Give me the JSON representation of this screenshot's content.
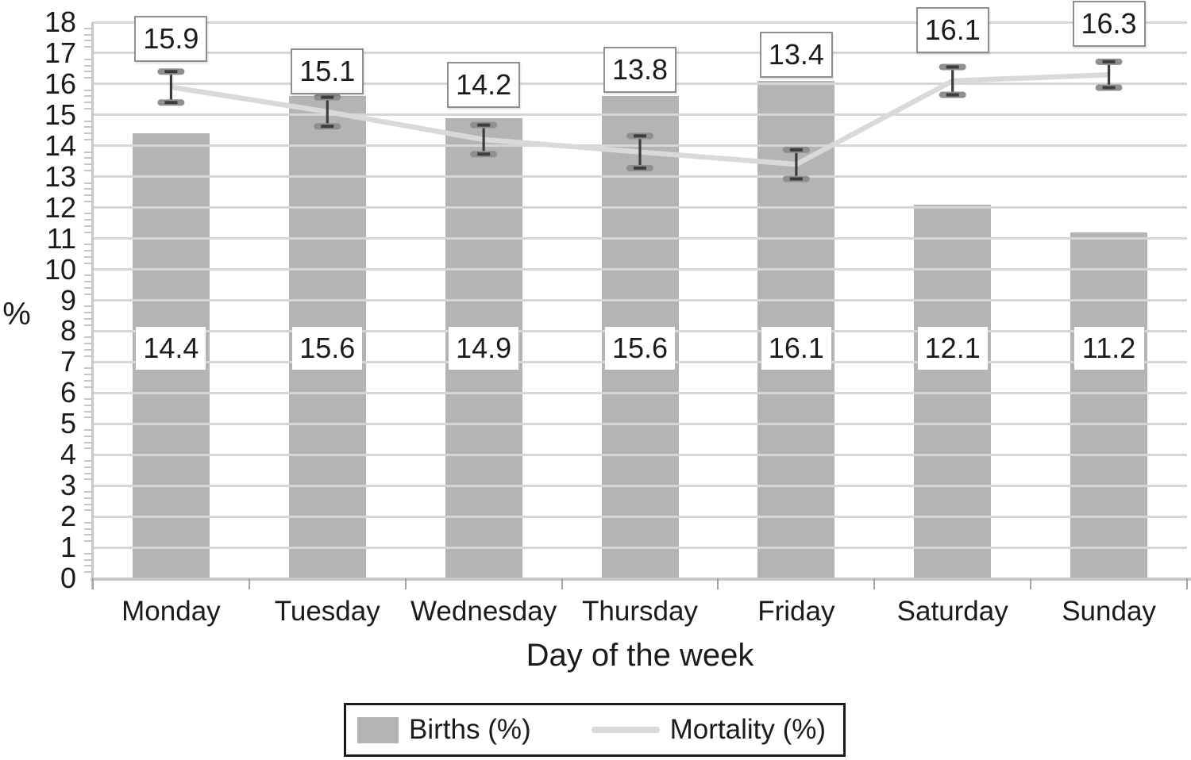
{
  "chart_data": {
    "type": "bar+line combo",
    "categories": [
      "Monday",
      "Tuesday",
      "Wednesday",
      "Thursday",
      "Friday",
      "Saturday",
      "Sunday"
    ],
    "series": [
      {
        "name": "Births (%)",
        "type": "bar",
        "values": [
          14.4,
          15.6,
          14.9,
          15.6,
          16.1,
          12.1,
          11.2
        ],
        "data_labels": [
          "14.4",
          "15.6",
          "14.9",
          "15.6",
          "16.1",
          "12.1",
          "11.2"
        ]
      },
      {
        "name": "Mortality (%)",
        "type": "line",
        "values": [
          15.9,
          15.1,
          14.2,
          13.8,
          13.4,
          16.1,
          16.3
        ],
        "data_labels": [
          "15.9",
          "15.1",
          "14.2",
          "13.8",
          "13.4",
          "16.1",
          "16.3"
        ],
        "error_bars": [
          0.5,
          0.47,
          0.47,
          0.52,
          0.47,
          0.45,
          0.42
        ]
      }
    ],
    "xlabel": "Day of the week",
    "ylabel": "%",
    "ylim": [
      0,
      18
    ],
    "y_ticks": [
      0,
      1,
      2,
      3,
      4,
      5,
      6,
      7,
      8,
      9,
      10,
      11,
      12,
      13,
      14,
      15,
      16,
      17,
      18
    ],
    "y_major_step": 1,
    "y_minor_step": 0.2,
    "grid": "horizontal major gridlines, drawn over bars",
    "legend_position": "bottom-center boxed",
    "layout_hints": {
      "bar_label_center_y_units": 7.45,
      "mortality_label_center_y_units": [
        17.45,
        16.4,
        15.97,
        16.45,
        16.95,
        17.75,
        17.95
      ]
    }
  },
  "colors": {
    "bar": "#b4b4b4",
    "mortality_line": "#d9d9d9",
    "gridline": "#d6d6d6",
    "axis": "#c7c7c7",
    "minor_tick": "#c6c6c6",
    "x_tick": "#a3a3a3",
    "error_bar": "#3c3c3c",
    "error_cap_wing": "#8f8f8f",
    "text": "#1b1b1b",
    "legend_border": "#1a1a1a"
  },
  "legend": {
    "births_label": "Births (%)",
    "mortality_label": "Mortality (%)"
  }
}
